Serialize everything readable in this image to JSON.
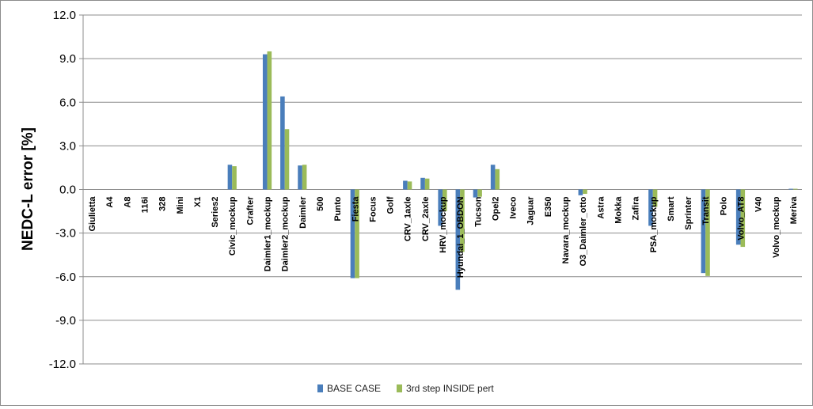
{
  "chart_data": {
    "type": "bar",
    "title": "",
    "xlabel": "",
    "ylabel": "NEDC-L error [%]",
    "ylim": [
      -12,
      12
    ],
    "yticks": [
      "12.0",
      "9.0",
      "6.0",
      "3.0",
      "0.0",
      "-3.0",
      "-6.0",
      "-9.0",
      "-12.0"
    ],
    "ytick_values": [
      12,
      9,
      6,
      3,
      0,
      -3,
      -6,
      -9,
      -12
    ],
    "grid": "horizontal",
    "legend_position": "bottom",
    "categories": [
      "Giulietta",
      "A4",
      "A8",
      "116i",
      "328",
      "Mini",
      "X1",
      "Series2",
      "Civic_mockup",
      "Crafter",
      "Daimler1_mockup",
      "Daimler2_mockup",
      "Daimler",
      "500",
      "Punto",
      "Fiesta",
      "Focus",
      "Golf",
      "CRV_1axle",
      "CRV_2axle",
      "HRV_mockup",
      "Hyundai_1_OBDON",
      "Tucson",
      "Opel2",
      "Iveco",
      "Jaguar",
      "E350",
      "Navara_mockup",
      "O3_Daimler_otto",
      "Astra",
      "Mokka",
      "Zafira",
      "PSA_mockup",
      "Smart",
      "Sprinter",
      "Transit",
      "Polo",
      "Volvo_AT8",
      "V40",
      "Volvo_mockup",
      "Meriva"
    ],
    "series": [
      {
        "name": "BASE CASE",
        "color": "#4a7ebb",
        "values": [
          0,
          0,
          0,
          0,
          0,
          0,
          0,
          0,
          1.7,
          0,
          9.3,
          6.4,
          1.65,
          0,
          0,
          -6.1,
          0,
          0,
          0.6,
          0.8,
          -2.5,
          -6.9,
          -0.55,
          1.7,
          0,
          0,
          0,
          0,
          -0.4,
          0,
          0,
          0,
          -2.5,
          0,
          0,
          -5.75,
          0,
          -3.8,
          0,
          0,
          0.05
        ]
      },
      {
        "name": "3rd step INSIDE pert",
        "color": "#9bbb59",
        "values": [
          0,
          0,
          0,
          0,
          0,
          0,
          0,
          0,
          1.6,
          0,
          9.5,
          4.15,
          1.7,
          0,
          0,
          -6.1,
          0,
          0,
          0.55,
          0.75,
          -1.5,
          -4.3,
          -0.5,
          1.4,
          0,
          0,
          0,
          0,
          -0.3,
          0,
          0,
          0,
          -1.2,
          0,
          0,
          -5.95,
          0,
          -3.95,
          0,
          0,
          0.05
        ]
      }
    ]
  }
}
